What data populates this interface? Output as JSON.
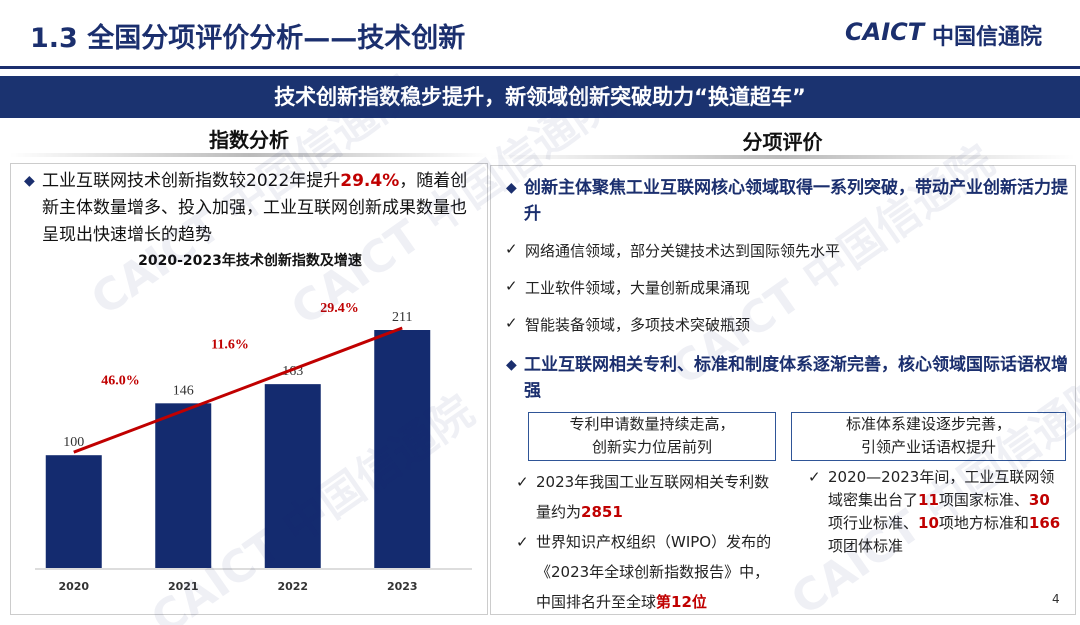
{
  "header": {
    "title": "1.3 全国分项评价分析——技术创新",
    "logo_mark": "CAICT",
    "logo_text": "中国信通院"
  },
  "banner": "技术创新指数稳步提升，新领域创新突破助力“换道超车”",
  "watermark": "CAICT 中国信通院",
  "left": {
    "heading": "指数分析",
    "paragraph": [
      "工业互联网技术创新指数较2022年提升",
      "29.4%",
      "，随着创新主体数量增多、投入加强，工业互联网创新成果数量也呈现出快速增长的趋势"
    ],
    "chart_data": {
      "type": "bar",
      "title": "2020-2023年技术创新指数及增速",
      "categories": [
        "2020",
        "2021",
        "2022",
        "2023"
      ],
      "values": [
        100,
        146,
        163,
        211
      ],
      "color": "#142b6f",
      "growth": {
        "values": [
          46.0,
          11.6,
          29.4
        ],
        "value_labels": [
          "46.0%",
          "11.6%",
          "29.4%"
        ],
        "color": "#c00000"
      }
    }
  },
  "right": {
    "heading": "分项评价",
    "point1": "创新主体聚焦工业互联网核心领域取得一系列突破，带动产业创新活力提升",
    "checks": [
      "网络通信领域，部分关键技术达到国际领先水平",
      "工业软件领域，大量创新成果涌现",
      "智能装备领域，多项技术突破瓶颈"
    ],
    "point2": "工业互联网相关专利、标准和制度体系逐渐完善，核心领域国际话语权增强",
    "box1": {
      "title": [
        "专利申请数量持续走高，",
        "创新实力位居前列"
      ],
      "items": [
        [
          "2023年我国工业互联网相关专利数量约为",
          "2851"
        ],
        [
          "世界知识产权组织（WIPO）发布的《2023年全球创新指数报告》中，中国排名升至全球",
          "第12位"
        ]
      ]
    },
    "box2": {
      "title": [
        "标准体系建设逐步完善，",
        "引领产业话语权提升"
      ],
      "items": [
        [
          "2020—2023年间，工业互联网领域密集出台了",
          "11",
          "项国家标准、",
          "30",
          "项行业标准、",
          "10",
          "项地方标准和",
          "166",
          "项团体标准"
        ]
      ]
    }
  },
  "page_number": "4"
}
